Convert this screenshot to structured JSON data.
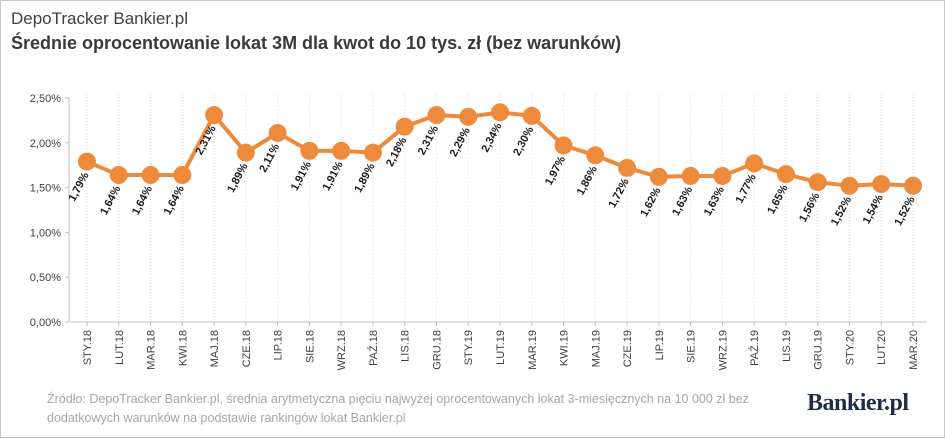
{
  "header": {
    "kicker": "DepoTracker Bankier.pl",
    "title": "Średnie oprocentowanie lokat 3M dla kwot do 10 tys. zł (bez warunków)"
  },
  "footer": {
    "source": "Źródło: DepoTracker Bankier.pl, średnia arytmetyczna pięciu najwyżej oprocentowanych lokat 3-miesięcznych na 10 000 zł bez dodatkowych warunków na podstawie rankingów lokat Bankier.pl",
    "logo": "Bankier.pl"
  },
  "colors": {
    "line": "#ee8a3c",
    "axis": "#bfbfbf",
    "grid": "#d9d9d9"
  },
  "chart_data": {
    "type": "line",
    "title": "Średnie oprocentowanie lokat 3M dla kwot do 10 tys. zł (bez warunków)",
    "xlabel": "",
    "ylabel": "",
    "ylim": [
      0,
      2.5
    ],
    "yticks": [
      0,
      0.5,
      1.0,
      1.5,
      2.0,
      2.5
    ],
    "ytick_labels": [
      "0,00%",
      "0,50%",
      "1,00%",
      "1,50%",
      "2,00%",
      "2,50%"
    ],
    "grid": "vertical dotted lines at each category",
    "legend": "none",
    "categories": [
      "STY.18",
      "LUT.18",
      "MAR.18",
      "KWI.18",
      "MAJ.18",
      "CZE.18",
      "LIP.18",
      "SIE.18",
      "WRZ.18",
      "PAŹ.18",
      "LIS.18",
      "GRU.18",
      "STY.19",
      "LUT.19",
      "MAR.19",
      "KWI.19",
      "MAJ.19",
      "CZE.19",
      "LIP.19",
      "SIE.19",
      "WRZ.19",
      "PAŹ.19",
      "LIS.19",
      "GRU.19",
      "STY.20",
      "LUT.20",
      "MAR.20"
    ],
    "values": [
      1.79,
      1.64,
      1.64,
      1.64,
      2.31,
      1.89,
      2.11,
      1.91,
      1.91,
      1.89,
      2.18,
      2.31,
      2.29,
      2.34,
      2.3,
      1.97,
      1.86,
      1.72,
      1.62,
      1.63,
      1.63,
      1.77,
      1.65,
      1.56,
      1.52,
      1.54,
      1.52
    ],
    "data_labels": [
      "1,79%",
      "1,64%",
      "1,64%",
      "1,64%",
      "2,31%",
      "1,89%",
      "2,11%",
      "1,91%",
      "1,91%",
      "1,89%",
      "2,18%",
      "2,31%",
      "2,29%",
      "2,34%",
      "2,30%",
      "1,97%",
      "1,86%",
      "1,72%",
      "1,62%",
      "1,63%",
      "1,63%",
      "1,77%",
      "1,65%",
      "1,56%",
      "1,52%",
      "1,54%",
      "1,52%"
    ]
  }
}
